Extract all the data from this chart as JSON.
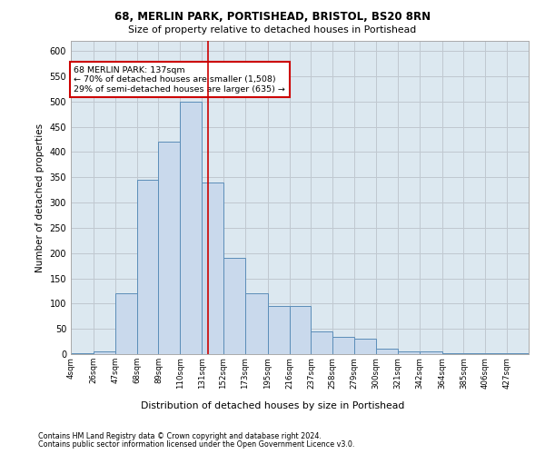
{
  "title1": "68, MERLIN PARK, PORTISHEAD, BRISTOL, BS20 8RN",
  "title2": "Size of property relative to detached houses in Portishead",
  "xlabel": "Distribution of detached houses by size in Portishead",
  "ylabel": "Number of detached properties",
  "footnote1": "Contains HM Land Registry data © Crown copyright and database right 2024.",
  "footnote2": "Contains public sector information licensed under the Open Government Licence v3.0.",
  "annotation_line1": "68 MERLIN PARK: 137sqm",
  "annotation_line2": "← 70% of detached houses are smaller (1,508)",
  "annotation_line3": "29% of semi-detached houses are larger (635) →",
  "property_size": 137,
  "bar_color": "#c9d9ec",
  "bar_edge_color": "#5b8db8",
  "marker_line_color": "#cc0000",
  "categories": [
    "4sqm",
    "26sqm",
    "47sqm",
    "68sqm",
    "89sqm",
    "110sqm",
    "131sqm",
    "152sqm",
    "173sqm",
    "195sqm",
    "216sqm",
    "237sqm",
    "258sqm",
    "279sqm",
    "300sqm",
    "321sqm",
    "342sqm",
    "364sqm",
    "385sqm",
    "406sqm",
    "427sqm"
  ],
  "bin_edges": [
    4,
    26,
    47,
    68,
    89,
    110,
    131,
    152,
    173,
    195,
    216,
    237,
    258,
    279,
    300,
    321,
    342,
    364,
    385,
    406,
    427,
    448
  ],
  "values": [
    2,
    5,
    120,
    345,
    420,
    500,
    340,
    190,
    120,
    95,
    95,
    45,
    35,
    30,
    10,
    5,
    5,
    2,
    2,
    2,
    2
  ],
  "ylim": [
    0,
    620
  ],
  "yticks": [
    0,
    50,
    100,
    150,
    200,
    250,
    300,
    350,
    400,
    450,
    500,
    550,
    600
  ],
  "grid_color": "#c0c8d0",
  "bg_color": "#dce8f0",
  "annotation_box_color": "#ffffff",
  "annotation_box_edge": "#cc0000"
}
